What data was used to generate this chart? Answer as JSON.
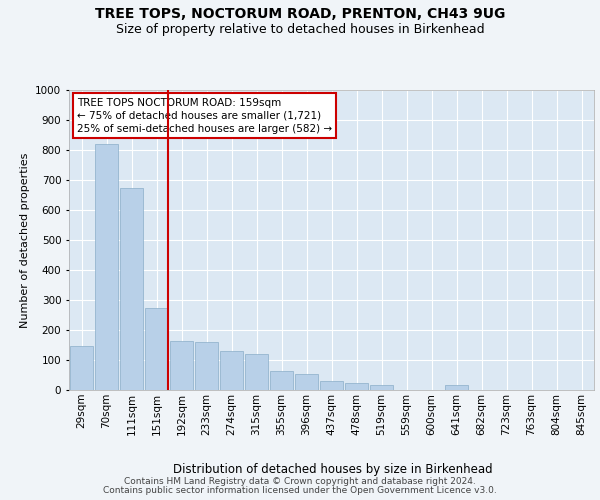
{
  "title": "TREE TOPS, NOCTORUM ROAD, PRENTON, CH43 9UG",
  "subtitle": "Size of property relative to detached houses in Birkenhead",
  "xlabel": "Distribution of detached houses by size in Birkenhead",
  "ylabel": "Number of detached properties",
  "categories": [
    "29sqm",
    "70sqm",
    "111sqm",
    "151sqm",
    "192sqm",
    "233sqm",
    "274sqm",
    "315sqm",
    "355sqm",
    "396sqm",
    "437sqm",
    "478sqm",
    "519sqm",
    "559sqm",
    "600sqm",
    "641sqm",
    "682sqm",
    "723sqm",
    "763sqm",
    "804sqm",
    "845sqm"
  ],
  "values": [
    148,
    820,
    675,
    275,
    165,
    160,
    130,
    120,
    65,
    55,
    30,
    25,
    18,
    0,
    0,
    18,
    0,
    0,
    0,
    0,
    0
  ],
  "bar_color": "#b8d0e8",
  "bar_edge_color": "#8aaec8",
  "vline_color": "#cc0000",
  "vline_index": 3.45,
  "ylim_max": 1000,
  "yticks": [
    0,
    100,
    200,
    300,
    400,
    500,
    600,
    700,
    800,
    900,
    1000
  ],
  "legend_line1": "TREE TOPS NOCTORUM ROAD: 159sqm",
  "legend_line2": "← 75% of detached houses are smaller (1,721)",
  "legend_line3": "25% of semi-detached houses are larger (582) →",
  "footer1": "Contains HM Land Registry data © Crown copyright and database right 2024.",
  "footer2": "Contains public sector information licensed under the Open Government Licence v3.0.",
  "fig_bg": "#f0f4f8",
  "plot_bg": "#dce8f3",
  "grid_color": "#ffffff",
  "title_fontsize": 10,
  "subtitle_fontsize": 9,
  "ylabel_fontsize": 8,
  "xlabel_fontsize": 8.5,
  "tick_fontsize": 7.5,
  "legend_fontsize": 7.5,
  "footer_fontsize": 6.5
}
